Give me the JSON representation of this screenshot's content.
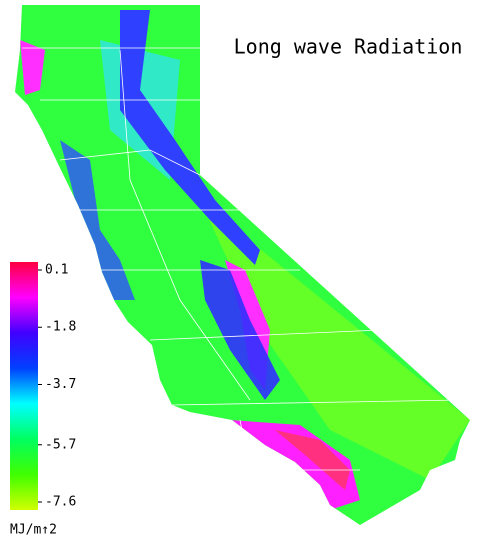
{
  "title": "Long wave Radiation",
  "colorbar": {
    "range": [
      -7.6,
      0.1
    ],
    "ticks": [
      0.1,
      -1.8,
      -3.7,
      -5.7,
      -7.6
    ],
    "unit": "MJ/m↑2",
    "colors": [
      "#ff0040",
      "#ff00ff",
      "#4000ff",
      "#0040ff",
      "#00ffff",
      "#00ff60",
      "#40ff00",
      "#d0ff00"
    ]
  }
}
